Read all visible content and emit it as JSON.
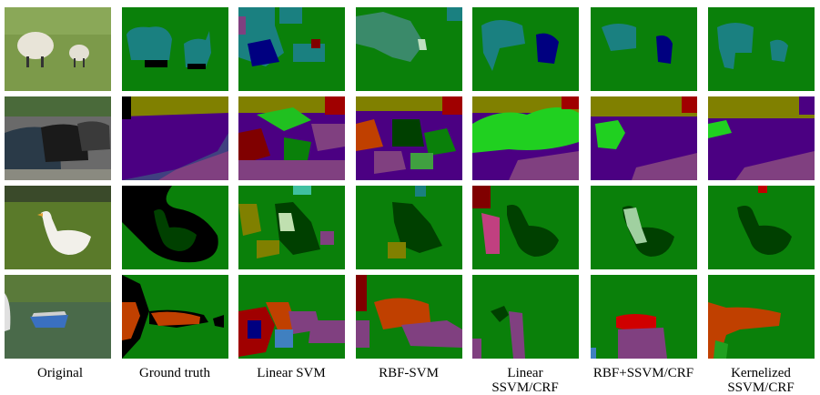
{
  "columns": [
    [
      "Original"
    ],
    [
      "Ground truth"
    ],
    [
      "Linear SVM"
    ],
    [
      "RBF-SVM"
    ],
    [
      "Linear",
      "SSVM/CRF"
    ],
    [
      "RBF+SSVM/CRF"
    ],
    [
      "Kernelized",
      "SSVM/CRF"
    ]
  ]
}
